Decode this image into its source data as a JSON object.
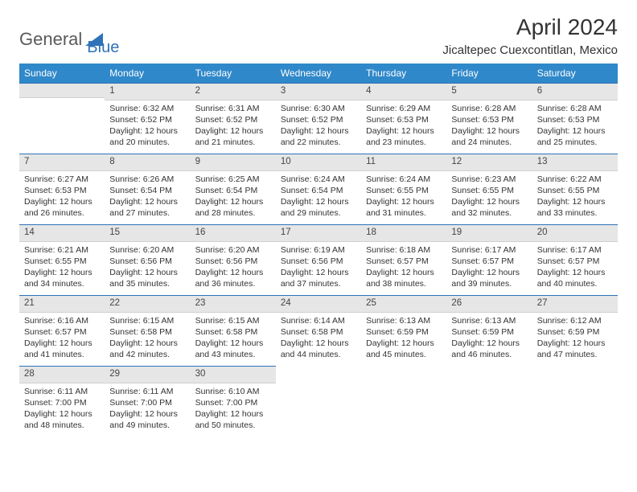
{
  "logo": {
    "part1": "General",
    "part2": "Blue"
  },
  "title": "April 2024",
  "location": "Jicaltepec Cuexcontitlan, Mexico",
  "colors": {
    "header_bg": "#2f88c9",
    "accent": "#2f72b8",
    "daynum_bg": "#e6e6e6",
    "text": "#333333",
    "background": "#ffffff"
  },
  "dayNames": [
    "Sunday",
    "Monday",
    "Tuesday",
    "Wednesday",
    "Thursday",
    "Friday",
    "Saturday"
  ],
  "weeks": [
    [
      null,
      {
        "n": "1",
        "sr": "6:32 AM",
        "ss": "6:52 PM",
        "dl": "12 hours and 20 minutes."
      },
      {
        "n": "2",
        "sr": "6:31 AM",
        "ss": "6:52 PM",
        "dl": "12 hours and 21 minutes."
      },
      {
        "n": "3",
        "sr": "6:30 AM",
        "ss": "6:52 PM",
        "dl": "12 hours and 22 minutes."
      },
      {
        "n": "4",
        "sr": "6:29 AM",
        "ss": "6:53 PM",
        "dl": "12 hours and 23 minutes."
      },
      {
        "n": "5",
        "sr": "6:28 AM",
        "ss": "6:53 PM",
        "dl": "12 hours and 24 minutes."
      },
      {
        "n": "6",
        "sr": "6:28 AM",
        "ss": "6:53 PM",
        "dl": "12 hours and 25 minutes."
      }
    ],
    [
      {
        "n": "7",
        "sr": "6:27 AM",
        "ss": "6:53 PM",
        "dl": "12 hours and 26 minutes."
      },
      {
        "n": "8",
        "sr": "6:26 AM",
        "ss": "6:54 PM",
        "dl": "12 hours and 27 minutes."
      },
      {
        "n": "9",
        "sr": "6:25 AM",
        "ss": "6:54 PM",
        "dl": "12 hours and 28 minutes."
      },
      {
        "n": "10",
        "sr": "6:24 AM",
        "ss": "6:54 PM",
        "dl": "12 hours and 29 minutes."
      },
      {
        "n": "11",
        "sr": "6:24 AM",
        "ss": "6:55 PM",
        "dl": "12 hours and 31 minutes."
      },
      {
        "n": "12",
        "sr": "6:23 AM",
        "ss": "6:55 PM",
        "dl": "12 hours and 32 minutes."
      },
      {
        "n": "13",
        "sr": "6:22 AM",
        "ss": "6:55 PM",
        "dl": "12 hours and 33 minutes."
      }
    ],
    [
      {
        "n": "14",
        "sr": "6:21 AM",
        "ss": "6:55 PM",
        "dl": "12 hours and 34 minutes."
      },
      {
        "n": "15",
        "sr": "6:20 AM",
        "ss": "6:56 PM",
        "dl": "12 hours and 35 minutes."
      },
      {
        "n": "16",
        "sr": "6:20 AM",
        "ss": "6:56 PM",
        "dl": "12 hours and 36 minutes."
      },
      {
        "n": "17",
        "sr": "6:19 AM",
        "ss": "6:56 PM",
        "dl": "12 hours and 37 minutes."
      },
      {
        "n": "18",
        "sr": "6:18 AM",
        "ss": "6:57 PM",
        "dl": "12 hours and 38 minutes."
      },
      {
        "n": "19",
        "sr": "6:17 AM",
        "ss": "6:57 PM",
        "dl": "12 hours and 39 minutes."
      },
      {
        "n": "20",
        "sr": "6:17 AM",
        "ss": "6:57 PM",
        "dl": "12 hours and 40 minutes."
      }
    ],
    [
      {
        "n": "21",
        "sr": "6:16 AM",
        "ss": "6:57 PM",
        "dl": "12 hours and 41 minutes."
      },
      {
        "n": "22",
        "sr": "6:15 AM",
        "ss": "6:58 PM",
        "dl": "12 hours and 42 minutes."
      },
      {
        "n": "23",
        "sr": "6:15 AM",
        "ss": "6:58 PM",
        "dl": "12 hours and 43 minutes."
      },
      {
        "n": "24",
        "sr": "6:14 AM",
        "ss": "6:58 PM",
        "dl": "12 hours and 44 minutes."
      },
      {
        "n": "25",
        "sr": "6:13 AM",
        "ss": "6:59 PM",
        "dl": "12 hours and 45 minutes."
      },
      {
        "n": "26",
        "sr": "6:13 AM",
        "ss": "6:59 PM",
        "dl": "12 hours and 46 minutes."
      },
      {
        "n": "27",
        "sr": "6:12 AM",
        "ss": "6:59 PM",
        "dl": "12 hours and 47 minutes."
      }
    ],
    [
      {
        "n": "28",
        "sr": "6:11 AM",
        "ss": "7:00 PM",
        "dl": "12 hours and 48 minutes."
      },
      {
        "n": "29",
        "sr": "6:11 AM",
        "ss": "7:00 PM",
        "dl": "12 hours and 49 minutes."
      },
      {
        "n": "30",
        "sr": "6:10 AM",
        "ss": "7:00 PM",
        "dl": "12 hours and 50 minutes."
      },
      null,
      null,
      null,
      null
    ]
  ],
  "labels": {
    "sunrise": "Sunrise:",
    "sunset": "Sunset:",
    "daylight": "Daylight:"
  }
}
